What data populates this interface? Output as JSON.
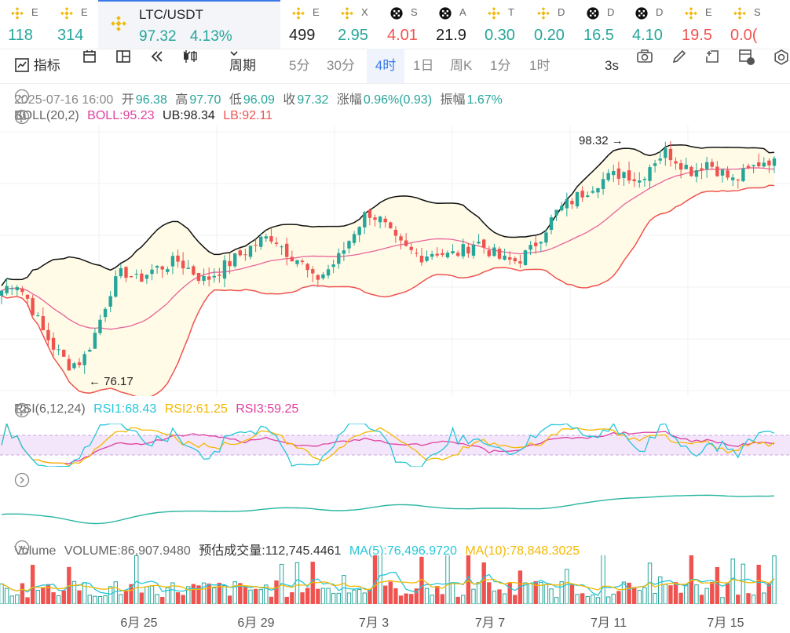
{
  "ticker": [
    {
      "icon": "bnb-icon",
      "name": "E",
      "price": "118",
      "trend": "up"
    },
    {
      "icon": "bnb-icon",
      "name": "E",
      "price": "314",
      "trend": "up"
    },
    {
      "icon": "bnb-icon",
      "name": "LTC/USDT",
      "price": "97.32",
      "change": "4.13%",
      "trend": "up",
      "active": true
    },
    {
      "icon": "bnb-icon",
      "name": "E",
      "price": "499",
      "trend": "flat"
    },
    {
      "icon": "bnb-icon",
      "name": "X",
      "price": "2.95",
      "trend": "up"
    },
    {
      "icon": "okx-icon",
      "name": "S",
      "price": "4.01",
      "trend": "down"
    },
    {
      "icon": "okx-icon",
      "name": "A",
      "price": "21.9",
      "trend": "flat"
    },
    {
      "icon": "bnb-icon",
      "name": "T",
      "price": "0.30",
      "trend": "up"
    },
    {
      "icon": "bnb-icon",
      "name": "D",
      "price": "0.20",
      "trend": "up"
    },
    {
      "icon": "okx-icon",
      "name": "D",
      "price": "16.5",
      "trend": "up"
    },
    {
      "icon": "okx-icon",
      "name": "D",
      "price": "4.10",
      "trend": "up"
    },
    {
      "icon": "bnb-icon",
      "name": "E",
      "price": "19.5",
      "trend": "down"
    },
    {
      "icon": "bnb-icon",
      "name": "S",
      "price": "0.0(",
      "trend": "down"
    }
  ],
  "toolbar": {
    "indicator_label": "指标",
    "period_label": "周期",
    "timeframes": [
      "5分",
      "30分",
      "4时",
      "1日",
      "周K",
      "1分",
      "1时"
    ],
    "selected_timeframe": "4时",
    "refresh_label": "3s"
  },
  "ohlc": {
    "datetime": "2025-07-16 16:00",
    "open_label": "开",
    "open": "96.38",
    "high_label": "高",
    "high": "97.70",
    "low_label": "低",
    "low": "96.09",
    "close_label": "收",
    "close": "97.32",
    "change_label": "涨幅",
    "change": "0.96%(0.93)",
    "amp_label": "振幅",
    "amp": "1.67%"
  },
  "boll": {
    "label": "BOLL(20,2)",
    "mid": "BOLL:95.23",
    "ub": "UB:98.34",
    "lb": "LB:92.11"
  },
  "price_marks": {
    "high": "98.32",
    "low": "76.17"
  },
  "rsi": {
    "label": "RSI(6,12,24)",
    "rsi1": "RSI1:68.43",
    "rsi2": "RSI2:61.25",
    "rsi3": "RSI3:59.25"
  },
  "volume": {
    "label": "Volume",
    "value": "VOLUME:86,907.9480",
    "est_label": "预估成交量:",
    "est": "112,745.4461",
    "ma5": "MA(5):76,496.9720",
    "ma10": "MA(10):78,848.3025"
  },
  "x_labels": [
    "6月 25",
    "6月 29",
    "7月 3",
    "7月 7",
    "7月 11",
    "7月 15"
  ],
  "colors": {
    "up": "#26a69a",
    "down": "#ef5350",
    "accent": "#3a78e7",
    "boll_band": "#fffbe6",
    "rsi1": "#26c6da",
    "rsi2": "#f5b800",
    "rsi3": "#e040a0"
  },
  "chart_data": {
    "type": "candlestick",
    "series": [
      {
        "name": "BOLL",
        "type": "line",
        "values": []
      },
      {
        "name": "UB",
        "type": "line",
        "values": []
      },
      {
        "name": "LB",
        "type": "line",
        "values": []
      }
    ],
    "x_categories": [
      "6月 25",
      "6月 29",
      "7月 3",
      "7月 7",
      "7月 11",
      "7月 15"
    ],
    "high_marker": 98.32,
    "low_marker": 76.17,
    "price_path": [
      84,
      85,
      83,
      80,
      78,
      76.5,
      77,
      80,
      84,
      86,
      85,
      86,
      86.5,
      87,
      86,
      85,
      86,
      87,
      88,
      89,
      89.5,
      88,
      87,
      85,
      86,
      87.5,
      90,
      92,
      91,
      89,
      88,
      87.5,
      88,
      87.5,
      88,
      89,
      88,
      87,
      87,
      88,
      90,
      92,
      93,
      94,
      95,
      95.5,
      96,
      95,
      97,
      98,
      97,
      96,
      97,
      96,
      95,
      96,
      97,
      97.32
    ]
  }
}
